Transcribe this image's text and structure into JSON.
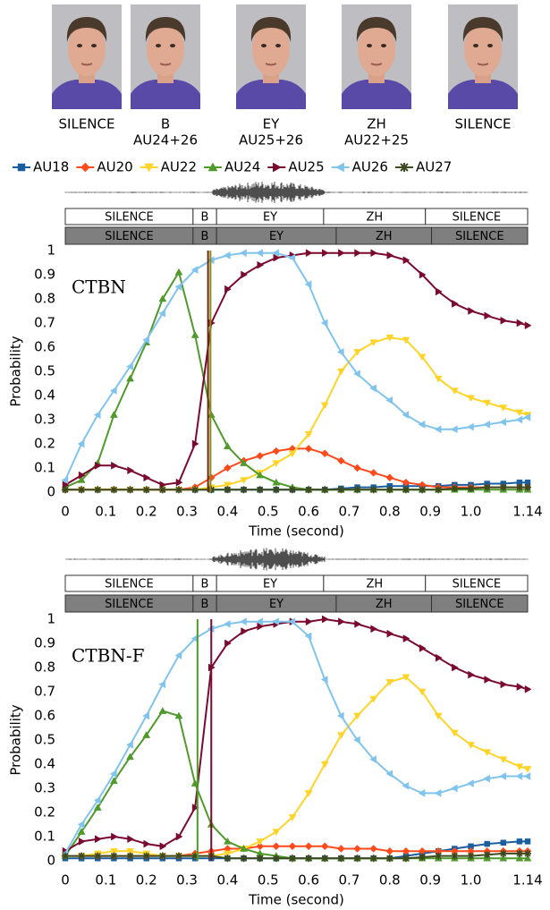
{
  "faces": [
    {
      "phoneme": "SILENCE"
    },
    {
      "phoneme": "B",
      "au": "AU24+26"
    },
    {
      "phoneme": "EY",
      "au": "AU25+26"
    },
    {
      "phoneme": "ZH",
      "au": "AU22+25"
    },
    {
      "phoneme": "SILENCE"
    }
  ],
  "chart_data": [
    {
      "type": "line",
      "title": "CTBN",
      "xlabel": "Time (second)",
      "ylabel": "Probability",
      "xlim": [
        0,
        1.14
      ],
      "ylim": [
        0,
        1
      ],
      "grid": false,
      "xticks": [
        0,
        0.1,
        0.2,
        0.3,
        0.4,
        0.5,
        0.6,
        0.7,
        0.8,
        0.9,
        {
          "value": 1,
          "label": "1.0"
        },
        1.14
      ],
      "yticks": [
        0,
        0.1,
        0.2,
        0.3,
        0.4,
        0.5,
        0.6,
        0.7,
        0.8,
        0.9,
        1
      ],
      "transcripts": [
        {
          "labels": [
            "SILENCE",
            "B",
            "EY",
            "ZH",
            "SILENCE"
          ],
          "bounds": [
            0,
            0.315,
            0.373,
            0.637,
            0.888,
            1.14
          ]
        },
        {
          "labels": [
            "SILENCE",
            "B",
            "EY",
            "ZH",
            "SILENCE"
          ],
          "bounds": [
            0,
            0.315,
            0.373,
            0.668,
            0.903,
            1.14
          ]
        }
      ],
      "vlines": [
        {
          "x": 0.352,
          "color": "#6b2a10"
        },
        {
          "x": 0.358,
          "color": "#8a8a20"
        }
      ],
      "x": [
        0,
        0.04,
        0.08,
        0.12,
        0.16,
        0.2,
        0.24,
        0.28,
        0.32,
        0.36,
        0.4,
        0.44,
        0.48,
        0.52,
        0.56,
        0.6,
        0.64,
        0.68,
        0.72,
        0.76,
        0.8,
        0.84,
        0.88,
        0.92,
        0.96,
        1.0,
        1.04,
        1.08,
        1.12,
        1.14
      ],
      "series": [
        {
          "name": "AU18",
          "color": "#1a5ea0",
          "marker": "square",
          "values": [
            0.01,
            0.01,
            0.01,
            0.01,
            0.01,
            0.01,
            0.01,
            0.01,
            0.01,
            0.01,
            0.01,
            0.01,
            0.01,
            0.01,
            0.01,
            0.01,
            0.01,
            0.015,
            0.02,
            0.02,
            0.025,
            0.025,
            0.025,
            0.025,
            0.03,
            0.03,
            0.035,
            0.035,
            0.04,
            0.04
          ]
        },
        {
          "name": "AU20",
          "color": "#ff4a1c",
          "marker": "diamond",
          "values": [
            0.01,
            0.01,
            0.01,
            0.01,
            0.01,
            0.01,
            0.01,
            0.01,
            0.02,
            0.06,
            0.1,
            0.13,
            0.15,
            0.17,
            0.18,
            0.18,
            0.16,
            0.13,
            0.1,
            0.08,
            0.06,
            0.04,
            0.03,
            0.02,
            0.02,
            0.02,
            0.02,
            0.02,
            0.02,
            0.02
          ]
        },
        {
          "name": "AU22",
          "color": "#ffd428",
          "marker": "tri-down",
          "values": [
            0.01,
            0.01,
            0.01,
            0.01,
            0.01,
            0.01,
            0.01,
            0.01,
            0.01,
            0.02,
            0.03,
            0.05,
            0.08,
            0.12,
            0.16,
            0.24,
            0.36,
            0.5,
            0.58,
            0.62,
            0.64,
            0.63,
            0.56,
            0.47,
            0.42,
            0.39,
            0.37,
            0.35,
            0.33,
            0.32
          ]
        },
        {
          "name": "AU24",
          "color": "#4f9a2a",
          "marker": "tri-up",
          "values": [
            0.02,
            0.05,
            0.12,
            0.32,
            0.47,
            0.62,
            0.8,
            0.91,
            0.65,
            0.32,
            0.19,
            0.12,
            0.07,
            0.04,
            0.02,
            0.01,
            0.01,
            0.01,
            0.01,
            0.01,
            0.01,
            0.01,
            0.01,
            0.01,
            0.01,
            0.01,
            0.01,
            0.01,
            0.01,
            0.01
          ]
        },
        {
          "name": "AU25",
          "color": "#7a0a2e",
          "marker": "tri-right",
          "values": [
            0.03,
            0.07,
            0.11,
            0.11,
            0.09,
            0.06,
            0.03,
            0.04,
            0.2,
            0.7,
            0.84,
            0.9,
            0.94,
            0.97,
            0.98,
            0.99,
            0.99,
            0.99,
            0.99,
            0.99,
            0.98,
            0.96,
            0.9,
            0.83,
            0.78,
            0.75,
            0.73,
            0.71,
            0.7,
            0.69
          ]
        },
        {
          "name": "AU26",
          "color": "#80c4ee",
          "marker": "tri-left",
          "values": [
            0.05,
            0.2,
            0.32,
            0.42,
            0.52,
            0.63,
            0.74,
            0.85,
            0.92,
            0.96,
            0.98,
            0.99,
            0.99,
            0.99,
            0.97,
            0.86,
            0.7,
            0.58,
            0.49,
            0.43,
            0.38,
            0.32,
            0.28,
            0.26,
            0.26,
            0.27,
            0.28,
            0.29,
            0.3,
            0.31
          ]
        },
        {
          "name": "AU27",
          "color": "#3d4a1f",
          "marker": "star",
          "values": [
            0.01,
            0.01,
            0.01,
            0.01,
            0.01,
            0.01,
            0.01,
            0.01,
            0.01,
            0.01,
            0.01,
            0.01,
            0.01,
            0.01,
            0.01,
            0.01,
            0.01,
            0.01,
            0.01,
            0.01,
            0.01,
            0.01,
            0.01,
            0.01,
            0.015,
            0.015,
            0.02,
            0.02,
            0.02,
            0.02
          ]
        }
      ]
    },
    {
      "type": "line",
      "title": "CTBN-F",
      "xlabel": "Time (second)",
      "ylabel": "Probability",
      "xlim": [
        0,
        1.14
      ],
      "ylim": [
        0,
        1
      ],
      "grid": false,
      "xticks": [
        0,
        0.1,
        0.2,
        0.3,
        0.4,
        0.5,
        0.6,
        0.7,
        0.8,
        0.9,
        {
          "value": 1,
          "label": "1.0"
        },
        1.14
      ],
      "yticks": [
        0,
        0.1,
        0.2,
        0.3,
        0.4,
        0.5,
        0.6,
        0.7,
        0.8,
        0.9,
        1
      ],
      "transcripts": [
        {
          "labels": [
            "SILENCE",
            "B",
            "EY",
            "ZH",
            "SILENCE"
          ],
          "bounds": [
            0,
            0.315,
            0.373,
            0.637,
            0.888,
            1.14
          ]
        },
        {
          "labels": [
            "SILENCE",
            "B",
            "EY",
            "ZH",
            "SILENCE"
          ],
          "bounds": [
            0,
            0.315,
            0.373,
            0.668,
            0.903,
            1.14
          ]
        }
      ],
      "vlines": [
        {
          "x": 0.326,
          "color": "#4f9a2a"
        },
        {
          "x": 0.36,
          "color": "#7a0a2e"
        }
      ],
      "x": [
        0,
        0.04,
        0.08,
        0.12,
        0.16,
        0.2,
        0.24,
        0.28,
        0.32,
        0.36,
        0.4,
        0.44,
        0.48,
        0.52,
        0.56,
        0.6,
        0.64,
        0.68,
        0.72,
        0.76,
        0.8,
        0.84,
        0.88,
        0.92,
        0.96,
        1.0,
        1.04,
        1.08,
        1.12,
        1.14
      ],
      "series": [
        {
          "values": [
            0.01,
            0.01,
            0.01,
            0.01,
            0.01,
            0.01,
            0.01,
            0.01,
            0.01,
            0.01,
            0.01,
            0.01,
            0.01,
            0.01,
            0.01,
            0.01,
            0.01,
            0.01,
            0.01,
            0.01,
            0.01,
            0.02,
            0.03,
            0.04,
            0.05,
            0.06,
            0.07,
            0.075,
            0.08,
            0.08
          ]
        },
        {
          "values": [
            0.02,
            0.02,
            0.02,
            0.02,
            0.02,
            0.02,
            0.02,
            0.02,
            0.03,
            0.04,
            0.05,
            0.05,
            0.06,
            0.06,
            0.06,
            0.06,
            0.06,
            0.05,
            0.05,
            0.05,
            0.04,
            0.04,
            0.04,
            0.04,
            0.04,
            0.04,
            0.04,
            0.04,
            0.04,
            0.04
          ]
        },
        {
          "values": [
            0.02,
            0.02,
            0.03,
            0.04,
            0.04,
            0.03,
            0.02,
            0.02,
            0.02,
            0.02,
            0.03,
            0.05,
            0.08,
            0.12,
            0.18,
            0.28,
            0.4,
            0.52,
            0.6,
            0.67,
            0.74,
            0.76,
            0.7,
            0.6,
            0.53,
            0.48,
            0.45,
            0.42,
            0.39,
            0.38
          ]
        },
        {
          "values": [
            0.02,
            0.12,
            0.22,
            0.33,
            0.43,
            0.52,
            0.62,
            0.6,
            0.32,
            0.15,
            0.08,
            0.05,
            0.03,
            0.02,
            0.01,
            0.01,
            0.01,
            0.01,
            0.01,
            0.01,
            0.01,
            0.01,
            0.01,
            0.01,
            0.01,
            0.01,
            0.01,
            0.01,
            0.01,
            0.01
          ]
        },
        {
          "values": [
            0.04,
            0.08,
            0.09,
            0.1,
            0.09,
            0.07,
            0.06,
            0.1,
            0.22,
            0.8,
            0.9,
            0.95,
            0.97,
            0.98,
            0.99,
            0.99,
            1.0,
            0.99,
            0.98,
            0.96,
            0.94,
            0.92,
            0.88,
            0.84,
            0.8,
            0.77,
            0.75,
            0.73,
            0.72,
            0.71
          ]
        },
        {
          "values": [
            0.03,
            0.15,
            0.25,
            0.36,
            0.48,
            0.6,
            0.73,
            0.85,
            0.92,
            0.96,
            0.98,
            0.99,
            0.99,
            0.99,
            0.99,
            0.93,
            0.75,
            0.6,
            0.5,
            0.42,
            0.36,
            0.31,
            0.28,
            0.28,
            0.3,
            0.32,
            0.34,
            0.35,
            0.35,
            0.35
          ]
        },
        {
          "values": [
            0.02,
            0.02,
            0.02,
            0.02,
            0.02,
            0.02,
            0.02,
            0.02,
            0.02,
            0.02,
            0.01,
            0.01,
            0.01,
            0.01,
            0.01,
            0.01,
            0.01,
            0.01,
            0.01,
            0.01,
            0.01,
            0.01,
            0.015,
            0.02,
            0.02,
            0.02,
            0.025,
            0.03,
            0.03,
            0.03
          ]
        }
      ]
    }
  ]
}
